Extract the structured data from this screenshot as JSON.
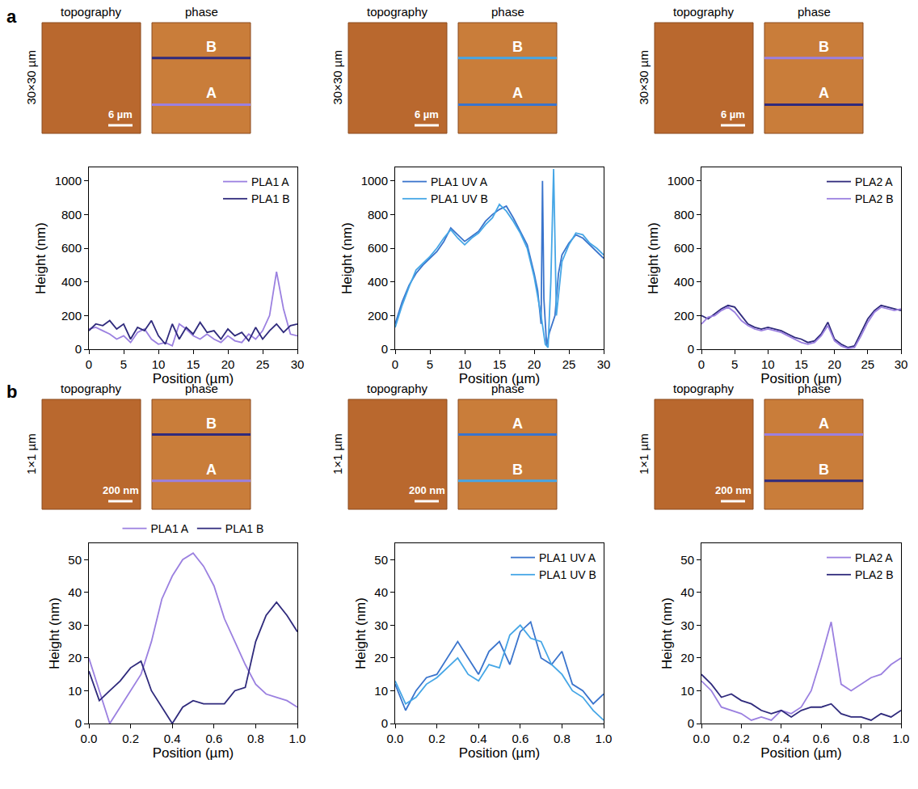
{
  "panel_labels": [
    "a",
    "b"
  ],
  "image_titles": [
    "topography",
    "phase"
  ],
  "chart_data": [
    {
      "type": "line",
      "scan_size": "30×30 µm",
      "scale_bar": "6 µm",
      "line_labels": [
        "B",
        "A"
      ],
      "xlabel": "Position (µm)",
      "ylabel": "Height (nm)",
      "xlim": [
        0,
        30
      ],
      "xticks": [
        0,
        5,
        10,
        15,
        20,
        25,
        30
      ],
      "ylim": [
        0,
        1080
      ],
      "yticks": [
        0,
        200,
        400,
        600,
        800,
        1000
      ],
      "legend": "top right",
      "series": [
        {
          "name": "PLA1 A",
          "color": "#9b80e0",
          "x": [
            0,
            1,
            2,
            3,
            4,
            5,
            6,
            7,
            8,
            9,
            10,
            11,
            12,
            13,
            14,
            15,
            16,
            17,
            18,
            19,
            20,
            21,
            22,
            23,
            24,
            25,
            26,
            27,
            28,
            29,
            30
          ],
          "values": [
            120,
            130,
            110,
            90,
            60,
            80,
            40,
            100,
            120,
            60,
            30,
            40,
            20,
            150,
            120,
            80,
            60,
            90,
            60,
            40,
            80,
            50,
            40,
            90,
            60,
            110,
            200,
            460,
            240,
            90,
            80
          ]
        },
        {
          "name": "PLA1 B",
          "color": "#2f2a7c",
          "x": [
            0,
            1,
            2,
            3,
            4,
            5,
            6,
            7,
            8,
            9,
            10,
            11,
            12,
            13,
            14,
            15,
            16,
            17,
            18,
            19,
            20,
            21,
            22,
            23,
            24,
            25,
            26,
            27,
            28,
            29,
            30
          ],
          "values": [
            110,
            150,
            140,
            170,
            120,
            150,
            60,
            130,
            110,
            170,
            80,
            30,
            150,
            60,
            130,
            90,
            160,
            100,
            110,
            60,
            120,
            80,
            100,
            50,
            130,
            60,
            110,
            150,
            100,
            140,
            150
          ]
        }
      ]
    },
    {
      "type": "line",
      "scan_size": "30×30 µm",
      "scale_bar": "6 µm",
      "line_labels": [
        "B",
        "A"
      ],
      "xlabel": "Position (µm)",
      "ylabel": "Height (nm)",
      "xlim": [
        0,
        30
      ],
      "xticks": [
        0,
        5,
        10,
        15,
        20,
        25,
        30
      ],
      "ylim": [
        0,
        1080
      ],
      "yticks": [
        0,
        200,
        400,
        600,
        800,
        1000
      ],
      "legend": "top left",
      "series": [
        {
          "name": "PLA1 UV A",
          "color": "#3a74cc",
          "x": [
            0,
            1,
            2,
            3,
            4,
            5,
            6,
            7,
            8,
            9,
            10,
            11,
            12,
            13,
            14,
            15,
            16,
            17,
            18,
            19,
            20,
            20.5,
            21,
            21.2,
            21.4,
            21.8,
            22.2,
            22.6,
            23,
            23.5,
            24,
            25,
            26,
            27,
            28,
            29,
            30
          ],
          "values": [
            150,
            280,
            380,
            450,
            500,
            540,
            580,
            640,
            720,
            680,
            640,
            670,
            700,
            760,
            800,
            830,
            850,
            780,
            700,
            620,
            450,
            350,
            150,
            1000,
            300,
            20,
            100,
            150,
            200,
            450,
            560,
            630,
            680,
            660,
            620,
            580,
            540
          ]
        },
        {
          "name": "PLA1 UV B",
          "color": "#45a6e6",
          "x": [
            0,
            1,
            2,
            3,
            4,
            5,
            6,
            7,
            8,
            9,
            10,
            11,
            12,
            13,
            14,
            15,
            16,
            17,
            18,
            19,
            20,
            21,
            21.6,
            22,
            22.4,
            22.8,
            23.2,
            23.6,
            24,
            25,
            26,
            27,
            28,
            29,
            30
          ],
          "values": [
            130,
            260,
            370,
            470,
            510,
            550,
            600,
            660,
            710,
            660,
            620,
            660,
            690,
            740,
            780,
            860,
            820,
            760,
            690,
            600,
            430,
            200,
            30,
            10,
            400,
            1070,
            200,
            350,
            520,
            620,
            690,
            680,
            630,
            600,
            560
          ]
        }
      ]
    },
    {
      "type": "line",
      "scan_size": "30×30 µm",
      "scale_bar": "6 µm",
      "line_labels": [
        "B",
        "A"
      ],
      "xlabel": "Position (µm)",
      "ylabel": "Height (nm)",
      "xlim": [
        0,
        30
      ],
      "xticks": [
        0,
        5,
        10,
        15,
        20,
        25,
        30
      ],
      "ylim": [
        0,
        1080
      ],
      "yticks": [
        0,
        200,
        400,
        600,
        800,
        1000
      ],
      "legend": "top right",
      "series": [
        {
          "name": "PLA2 A",
          "color": "#2f2a7c",
          "x": [
            0,
            1,
            2,
            3,
            4,
            5,
            6,
            7,
            8,
            9,
            10,
            11,
            12,
            13,
            14,
            15,
            16,
            17,
            18,
            19,
            20,
            21,
            22,
            23,
            24,
            25,
            26,
            27,
            28,
            29,
            30
          ],
          "values": [
            200,
            180,
            210,
            240,
            260,
            250,
            200,
            150,
            130,
            120,
            130,
            120,
            110,
            90,
            70,
            60,
            40,
            50,
            90,
            160,
            60,
            30,
            10,
            20,
            100,
            180,
            230,
            260,
            250,
            240,
            230
          ]
        },
        {
          "name": "PLA2 B",
          "color": "#9b80e0",
          "x": [
            0,
            1,
            2,
            3,
            4,
            5,
            6,
            7,
            8,
            9,
            10,
            11,
            12,
            13,
            14,
            15,
            16,
            17,
            18,
            19,
            20,
            21,
            22,
            23,
            24,
            25,
            26,
            27,
            28,
            29,
            30
          ],
          "values": [
            150,
            190,
            200,
            230,
            250,
            220,
            170,
            140,
            120,
            110,
            120,
            110,
            100,
            80,
            60,
            40,
            30,
            40,
            80,
            140,
            50,
            20,
            5,
            10,
            80,
            160,
            220,
            250,
            240,
            230,
            240
          ]
        }
      ]
    },
    {
      "type": "line",
      "scan_size": "1×1 µm",
      "scale_bar": "200 nm",
      "line_labels": [
        "B",
        "A"
      ],
      "xlabel": "Position (µm)",
      "ylabel": "Height (nm)",
      "xlim": [
        0,
        1
      ],
      "xticks": [
        {
          "value": 0,
          "label": "0.0"
        },
        {
          "value": 0.2,
          "label": "0.2"
        },
        {
          "value": 0.4,
          "label": "0.4"
        },
        {
          "value": 0.6,
          "label": "0.6"
        },
        {
          "value": 0.8,
          "label": "0.8"
        },
        {
          "value": 1,
          "label": "1.0"
        }
      ],
      "ylim": [
        0,
        55
      ],
      "yticks": [
        0,
        10,
        20,
        30,
        40,
        50
      ],
      "legend": "top",
      "series": [
        {
          "name": "PLA1 A",
          "color": "#9b80e0",
          "x": [
            0,
            0.05,
            0.1,
            0.15,
            0.2,
            0.25,
            0.3,
            0.35,
            0.4,
            0.45,
            0.5,
            0.55,
            0.6,
            0.65,
            0.7,
            0.75,
            0.8,
            0.85,
            0.9,
            0.95,
            1
          ],
          "values": [
            20,
            10,
            0,
            5,
            10,
            15,
            25,
            38,
            45,
            50,
            52,
            48,
            42,
            32,
            25,
            18,
            12,
            9,
            8,
            7,
            5
          ]
        },
        {
          "name": "PLA1 B",
          "color": "#2f2a7c",
          "x": [
            0,
            0.05,
            0.1,
            0.15,
            0.2,
            0.25,
            0.3,
            0.35,
            0.4,
            0.45,
            0.5,
            0.55,
            0.6,
            0.65,
            0.7,
            0.75,
            0.8,
            0.85,
            0.9,
            0.95,
            1
          ],
          "values": [
            16,
            7,
            10,
            13,
            17,
            19,
            10,
            5,
            0,
            5,
            7,
            6,
            6,
            6,
            10,
            11,
            25,
            33,
            37,
            33,
            28
          ]
        }
      ]
    },
    {
      "type": "line",
      "scan_size": "1×1 µm",
      "scale_bar": "200 nm",
      "line_labels": [
        "A",
        "B"
      ],
      "xlabel": "Position (µm)",
      "ylabel": "Height (nm)",
      "xlim": [
        0,
        1
      ],
      "xticks": [
        {
          "value": 0,
          "label": "0.0"
        },
        {
          "value": 0.2,
          "label": "0.2"
        },
        {
          "value": 0.4,
          "label": "0.4"
        },
        {
          "value": 0.6,
          "label": "0.6"
        },
        {
          "value": 0.8,
          "label": "0.8"
        },
        {
          "value": 1,
          "label": "1.0"
        }
      ],
      "ylim": [
        0,
        55
      ],
      "yticks": [
        0,
        10,
        20,
        30,
        40,
        50
      ],
      "legend": "top right",
      "series": [
        {
          "name": "PLA1 UV A",
          "color": "#3a74cc",
          "x": [
            0,
            0.05,
            0.1,
            0.15,
            0.2,
            0.25,
            0.3,
            0.35,
            0.4,
            0.45,
            0.5,
            0.55,
            0.6,
            0.65,
            0.7,
            0.75,
            0.8,
            0.85,
            0.9,
            0.95,
            1
          ],
          "values": [
            12,
            4,
            10,
            14,
            15,
            20,
            25,
            20,
            15,
            22,
            25,
            18,
            28,
            31,
            20,
            18,
            22,
            12,
            10,
            6,
            9
          ]
        },
        {
          "name": "PLA1 UV B",
          "color": "#45a6e6",
          "x": [
            0,
            0.05,
            0.1,
            0.15,
            0.2,
            0.25,
            0.3,
            0.35,
            0.4,
            0.45,
            0.5,
            0.55,
            0.6,
            0.65,
            0.7,
            0.75,
            0.8,
            0.85,
            0.9,
            0.95,
            1
          ],
          "values": [
            13,
            6,
            8,
            12,
            14,
            17,
            20,
            15,
            13,
            18,
            17,
            27,
            30,
            26,
            25,
            18,
            15,
            10,
            8,
            4,
            1
          ]
        }
      ]
    },
    {
      "type": "line",
      "scan_size": "1×1 µm",
      "scale_bar": "200 nm",
      "line_labels": [
        "A",
        "B"
      ],
      "xlabel": "Position (µm)",
      "ylabel": "Height (nm)",
      "xlim": [
        0,
        1
      ],
      "xticks": [
        {
          "value": 0,
          "label": "0.0"
        },
        {
          "value": 0.2,
          "label": "0.2"
        },
        {
          "value": 0.4,
          "label": "0.4"
        },
        {
          "value": 0.6,
          "label": "0.6"
        },
        {
          "value": 0.8,
          "label": "0.8"
        },
        {
          "value": 1,
          "label": "1.0"
        }
      ],
      "ylim": [
        0,
        55
      ],
      "yticks": [
        0,
        10,
        20,
        30,
        40,
        50
      ],
      "legend": "top right",
      "series": [
        {
          "name": "PLA2 A",
          "color": "#9b80e0",
          "x": [
            0,
            0.05,
            0.1,
            0.15,
            0.2,
            0.25,
            0.3,
            0.35,
            0.4,
            0.45,
            0.5,
            0.55,
            0.6,
            0.65,
            0.7,
            0.75,
            0.8,
            0.85,
            0.9,
            0.95,
            1
          ],
          "values": [
            13,
            10,
            5,
            4,
            3,
            1,
            2,
            1,
            4,
            3,
            5,
            10,
            20,
            31,
            12,
            10,
            12,
            14,
            15,
            18,
            20
          ]
        },
        {
          "name": "PLA2 B",
          "color": "#2f2a7c",
          "x": [
            0,
            0.05,
            0.1,
            0.15,
            0.2,
            0.25,
            0.3,
            0.35,
            0.4,
            0.45,
            0.5,
            0.55,
            0.6,
            0.65,
            0.7,
            0.75,
            0.8,
            0.85,
            0.9,
            0.95,
            1
          ],
          "values": [
            15,
            12,
            8,
            9,
            7,
            6,
            4,
            3,
            4,
            2,
            4,
            5,
            5,
            6,
            3,
            2,
            2,
            1,
            3,
            2,
            4
          ]
        }
      ]
    }
  ]
}
